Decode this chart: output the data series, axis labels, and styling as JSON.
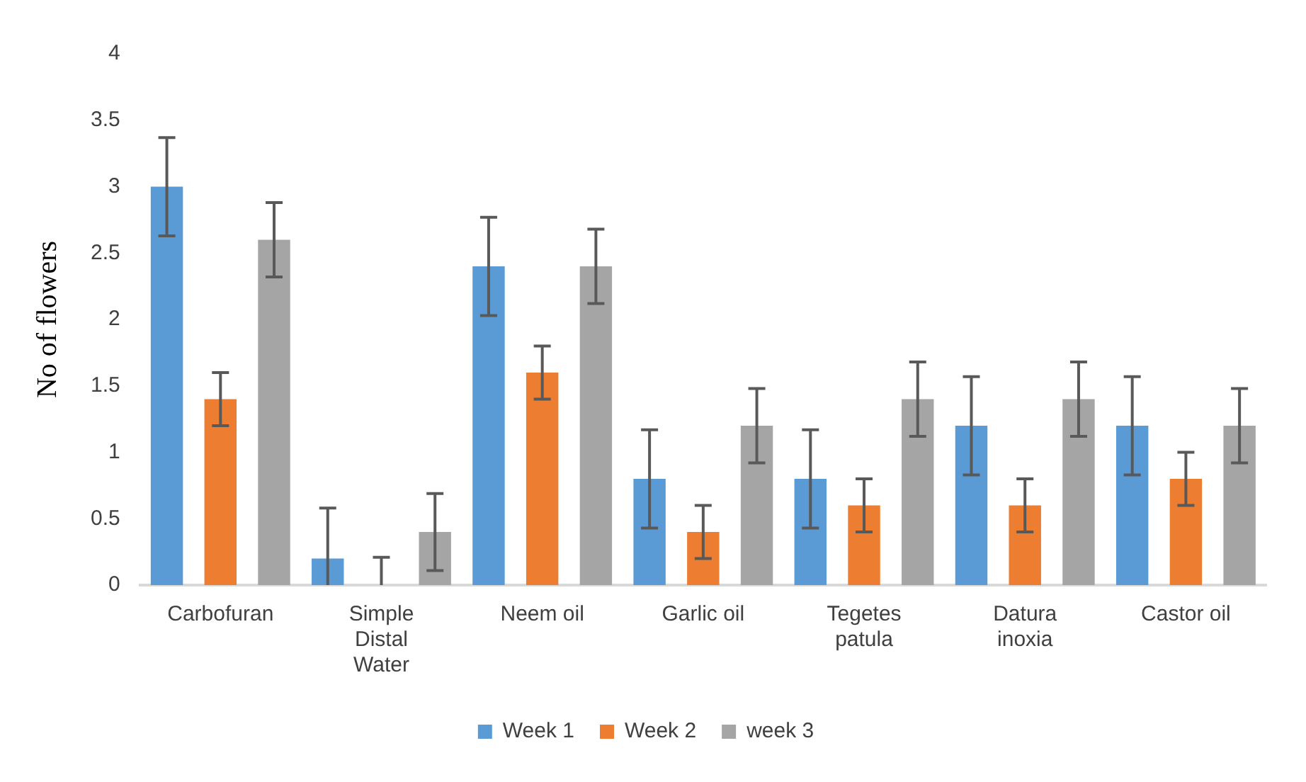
{
  "chart_data": {
    "type": "bar",
    "ylabel": "No of flowers",
    "categories": [
      "Carbofuran",
      "Simple Distal Water",
      "Neem oil",
      "Garlic oil",
      "Tegetes patula",
      "Datura inoxia",
      "Castor oil"
    ],
    "series": [
      {
        "name": "Week 1",
        "color": "#5b9bd5",
        "values": [
          3,
          0.2,
          2.4,
          0.8,
          0.8,
          1.2,
          1.2
        ],
        "errors": [
          [
            2.63,
            3.37
          ],
          [
            0,
            0.58
          ],
          [
            2.03,
            2.77
          ],
          [
            0.43,
            1.17
          ],
          [
            0.43,
            1.17
          ],
          [
            0.83,
            1.57
          ],
          [
            0.83,
            1.57
          ]
        ]
      },
      {
        "name": "Week 2",
        "color": "#ed7d31",
        "values": [
          1.4,
          0,
          1.6,
          0.4,
          0.6,
          0.6,
          0.8
        ],
        "errors": [
          [
            1.2,
            1.6
          ],
          [
            0,
            0.21
          ],
          [
            1.4,
            1.8
          ],
          [
            0.2,
            0.6
          ],
          [
            0.4,
            0.8
          ],
          [
            0.4,
            0.8
          ],
          [
            0.6,
            1
          ]
        ]
      },
      {
        "name": "week 3",
        "color": "#a5a5a5",
        "values": [
          2.6,
          0.4,
          2.4,
          1.2,
          1.4,
          1.4,
          1.2
        ],
        "errors": [
          [
            2.32,
            2.88
          ],
          [
            0.11,
            0.69
          ],
          [
            2.12,
            2.68
          ],
          [
            0.92,
            1.48
          ],
          [
            1.12,
            1.68
          ],
          [
            1.12,
            1.68
          ],
          [
            0.92,
            1.48
          ]
        ]
      }
    ],
    "ylim": [
      0,
      4
    ],
    "yticks": [
      0,
      0.5,
      1,
      1.5,
      2,
      2.5,
      3,
      3.5,
      4
    ],
    "grid": false,
    "legend": "bottom"
  }
}
